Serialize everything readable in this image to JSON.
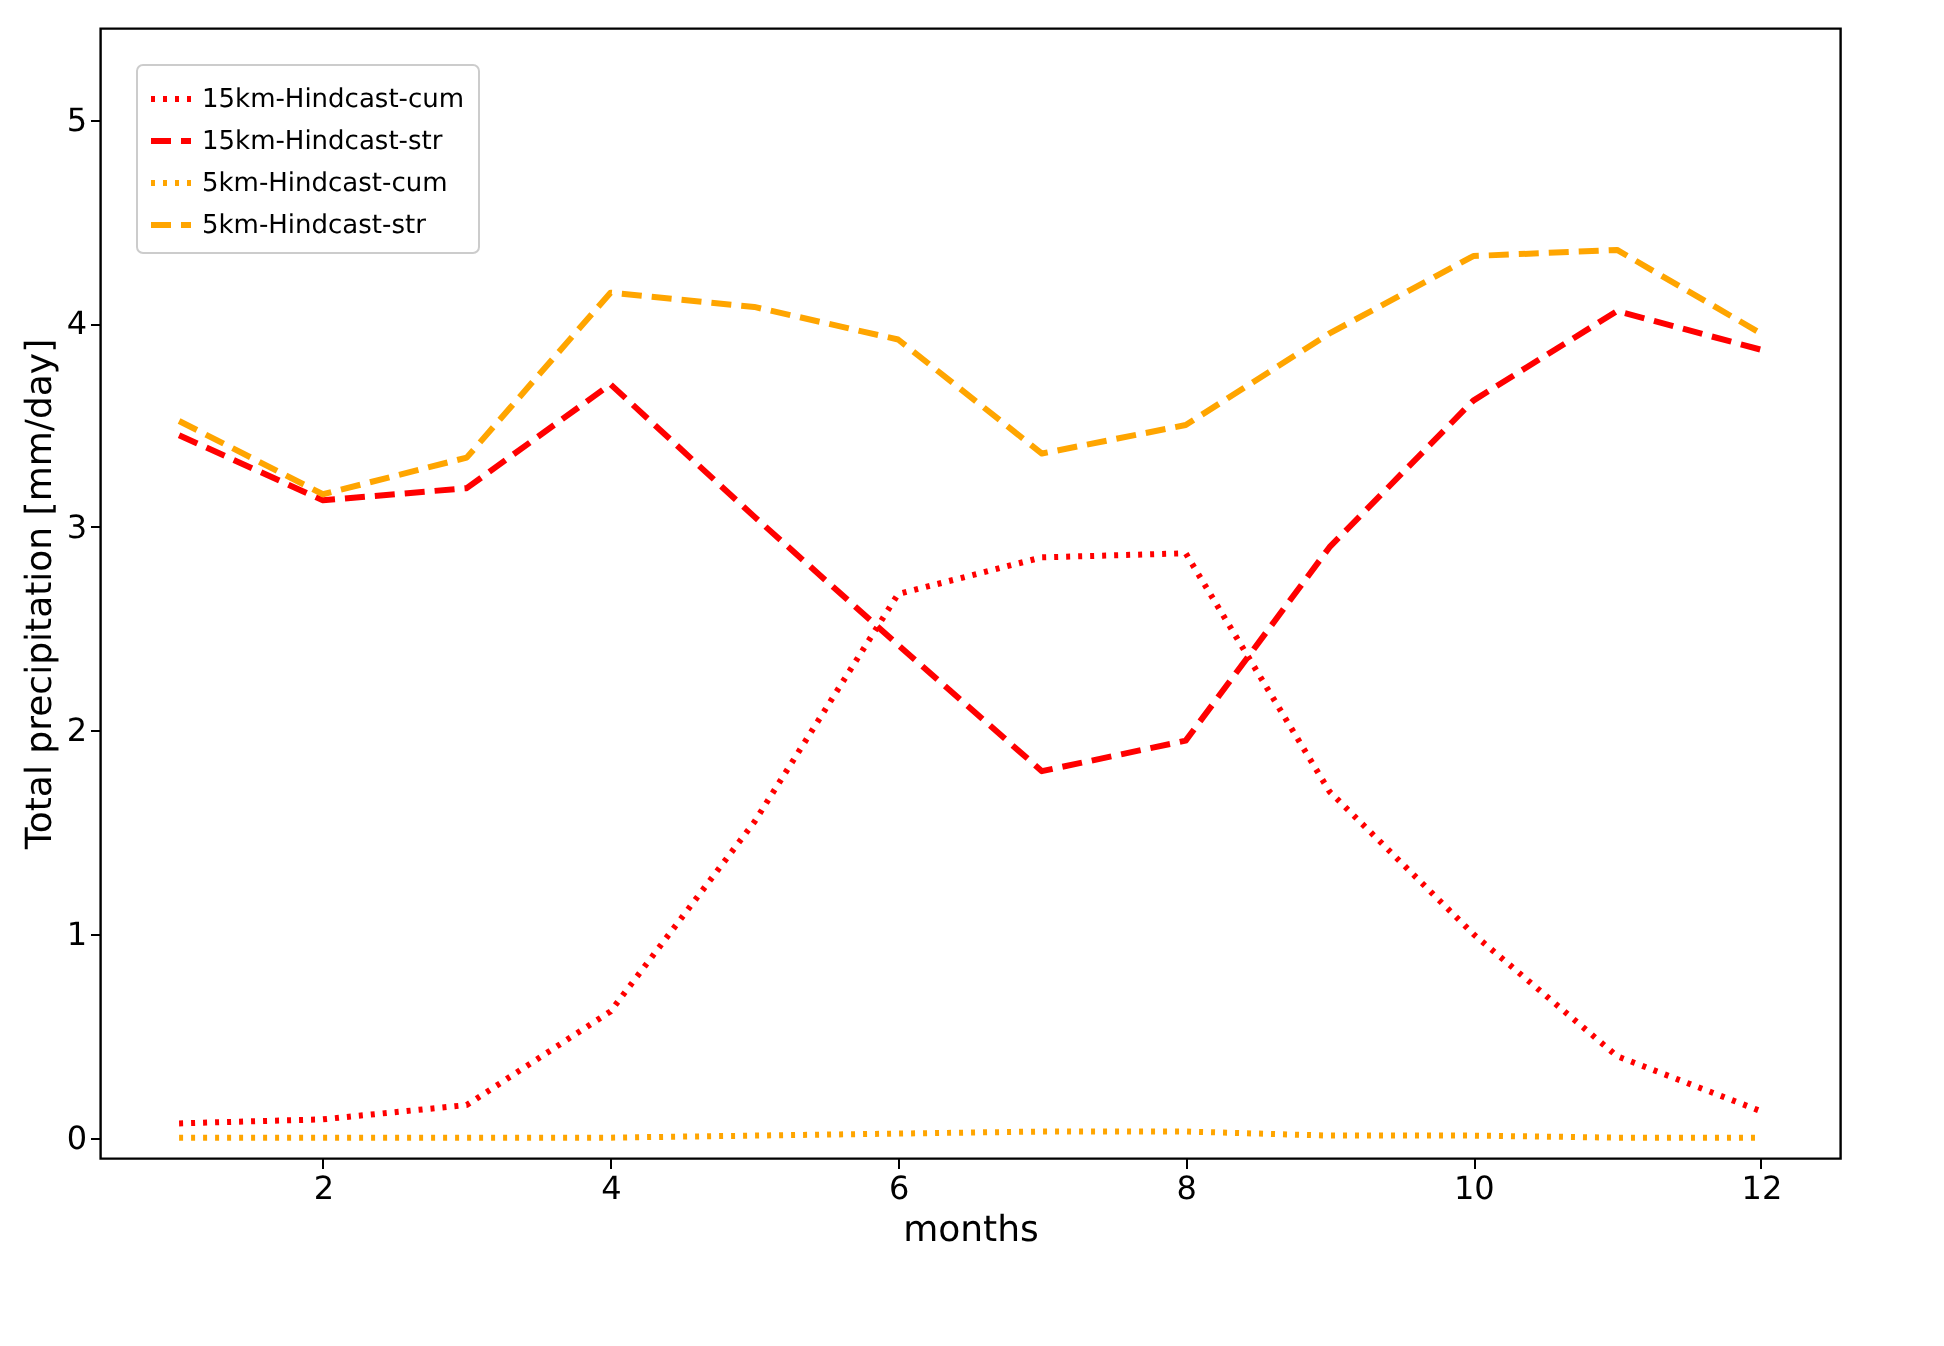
{
  "chart_data": {
    "type": "line",
    "xlabel": "months",
    "ylabel": "Total precipitation [mm/day]",
    "x": [
      1,
      2,
      3,
      4,
      5,
      6,
      7,
      8,
      9,
      10,
      11,
      12
    ],
    "series": [
      {
        "name": "15km-Hindcast-cum",
        "color": "#ff0000",
        "line_style": "dotted",
        "values": [
          0.07,
          0.09,
          0.16,
          0.62,
          1.55,
          2.67,
          2.85,
          2.87,
          1.7,
          1.0,
          0.4,
          0.13
        ]
      },
      {
        "name": "15km-Hindcast-str",
        "color": "#ff0000",
        "line_style": "dashed",
        "values": [
          3.45,
          3.13,
          3.19,
          3.7,
          3.05,
          2.42,
          1.8,
          1.95,
          2.9,
          3.62,
          4.06,
          3.87
        ]
      },
      {
        "name": "5km-Hindcast-cum",
        "color": "#ffa500",
        "line_style": "dotted",
        "values": [
          0,
          0,
          0,
          0,
          0.01,
          0.02,
          0.03,
          0.03,
          0.01,
          0.01,
          0,
          0
        ]
      },
      {
        "name": "5km-Hindcast-str",
        "color": "#ffa500",
        "line_style": "dashed",
        "values": [
          3.52,
          3.16,
          3.34,
          4.15,
          4.08,
          3.92,
          3.36,
          3.5,
          3.95,
          4.33,
          4.36,
          3.95
        ]
      }
    ],
    "xlim": [
      0.45,
      12.55
    ],
    "ylim": [
      -0.1,
      5.45
    ],
    "xticks": [
      2,
      4,
      6,
      8,
      10,
      12
    ],
    "yticks": [
      0,
      1,
      2,
      3,
      4,
      5
    ],
    "legend": "top left",
    "grid": false
  }
}
